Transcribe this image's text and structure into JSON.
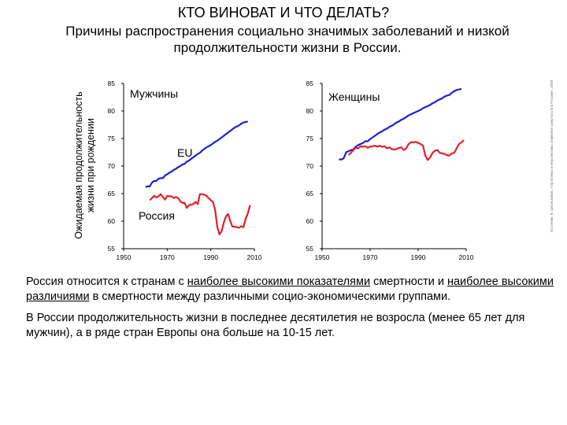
{
  "title": "КТО ВИНОВАТ И ЧТО ДЕЛАТЬ?",
  "subtitle": "Причины распространения социально значимых заболеваний и низкой продолжительности жизни  в России.",
  "y_axis_title": "Ожидаемая продолжительность жизни при рождении",
  "source_note": "Источник: В. Школьников, «Проблемы и перспективы снижения смертности в России», 2009",
  "paragraph1": {
    "p1": "Россия относится к странам с ",
    "u1": "наиболее высокими  показателями",
    "p2": " смертности и ",
    "u2": "наиболее высокими различиями",
    "p3": " в смертности между различными социо-экономическими группами."
  },
  "paragraph2": "В России продолжительность жизни в последнее десятилетия  не возросла (менее 65 лет для мужчин), а в ряде стран Европы она больше на 10-15 лет.",
  "colors": {
    "eu": "#1f1fcf",
    "russia": "#e0202a",
    "axis": "#000000"
  },
  "chart_data": [
    {
      "type": "line",
      "title": "Мужчины",
      "ylim": [
        55,
        85
      ],
      "xlim": [
        1950,
        2010
      ],
      "yticks": [
        55,
        60,
        65,
        70,
        75,
        80,
        85
      ],
      "xticks": [
        1950,
        1970,
        1990,
        2010
      ],
      "series": [
        {
          "name": "EU",
          "color": "#1f1fcf",
          "points": [
            [
              1960,
              66.2
            ],
            [
              1961,
              66.3
            ],
            [
              1962,
              66.3
            ],
            [
              1963,
              67.0
            ],
            [
              1964,
              67.3
            ],
            [
              1965,
              67.3
            ],
            [
              1966,
              67.7
            ],
            [
              1967,
              67.8
            ],
            [
              1968,
              67.8
            ],
            [
              1969,
              68.3
            ],
            [
              1970,
              68.5
            ],
            [
              1971,
              68.8
            ],
            [
              1972,
              69.0
            ],
            [
              1973,
              69.3
            ],
            [
              1974,
              69.5
            ],
            [
              1975,
              69.8
            ],
            [
              1976,
              70.0
            ],
            [
              1977,
              70.3
            ],
            [
              1978,
              70.4
            ],
            [
              1979,
              70.8
            ],
            [
              1980,
              71.0
            ],
            [
              1981,
              71.3
            ],
            [
              1982,
              71.6
            ],
            [
              1983,
              71.9
            ],
            [
              1984,
              72.2
            ],
            [
              1985,
              72.4
            ],
            [
              1986,
              72.8
            ],
            [
              1987,
              73.1
            ],
            [
              1988,
              73.4
            ],
            [
              1989,
              73.6
            ],
            [
              1990,
              73.8
            ],
            [
              1991,
              74.1
            ],
            [
              1992,
              74.4
            ],
            [
              1993,
              74.6
            ],
            [
              1994,
              74.9
            ],
            [
              1995,
              75.2
            ],
            [
              1996,
              75.5
            ],
            [
              1997,
              75.8
            ],
            [
              1998,
              76.1
            ],
            [
              1999,
              76.4
            ],
            [
              2000,
              76.7
            ],
            [
              2001,
              77.0
            ],
            [
              2002,
              77.2
            ],
            [
              2003,
              77.4
            ],
            [
              2004,
              77.7
            ],
            [
              2005,
              77.9
            ],
            [
              2006,
              78.0
            ],
            [
              2007,
              78.1
            ]
          ]
        },
        {
          "name": "Россия",
          "color": "#e0202a",
          "points": [
            [
              1962,
              63.8
            ],
            [
              1963,
              64.2
            ],
            [
              1964,
              64.6
            ],
            [
              1965,
              64.3
            ],
            [
              1966,
              64.5
            ],
            [
              1967,
              64.9
            ],
            [
              1968,
              64.4
            ],
            [
              1969,
              63.9
            ],
            [
              1970,
              64.6
            ],
            [
              1971,
              64.5
            ],
            [
              1972,
              64.5
            ],
            [
              1973,
              64.2
            ],
            [
              1974,
              64.4
            ],
            [
              1975,
              64.2
            ],
            [
              1976,
              63.6
            ],
            [
              1977,
              63.3
            ],
            [
              1978,
              63.3
            ],
            [
              1979,
              62.4
            ],
            [
              1980,
              62.9
            ],
            [
              1981,
              63.0
            ],
            [
              1982,
              63.1
            ],
            [
              1983,
              63.5
            ],
            [
              1984,
              63.1
            ],
            [
              1985,
              64.9
            ],
            [
              1986,
              64.9
            ],
            [
              1987,
              64.8
            ],
            [
              1988,
              64.6
            ],
            [
              1989,
              64.2
            ],
            [
              1990,
              63.8
            ],
            [
              1991,
              63.5
            ],
            [
              1992,
              62.0
            ],
            [
              1993,
              58.9
            ],
            [
              1994,
              57.6
            ],
            [
              1995,
              58.2
            ],
            [
              1996,
              59.8
            ],
            [
              1997,
              60.9
            ],
            [
              1998,
              61.3
            ],
            [
              1999,
              59.9
            ],
            [
              2000,
              59.0
            ],
            [
              2001,
              59.0
            ],
            [
              2002,
              58.9
            ],
            [
              2003,
              58.8
            ],
            [
              2004,
              59.1
            ],
            [
              2005,
              58.9
            ],
            [
              2006,
              60.4
            ],
            [
              2007,
              61.4
            ],
            [
              2008,
              62.9
            ]
          ]
        }
      ]
    },
    {
      "type": "line",
      "title": "Женщины",
      "ylim": [
        55,
        85
      ],
      "xlim": [
        1950,
        2010
      ],
      "yticks": [
        55,
        60,
        65,
        70,
        75,
        80,
        85
      ],
      "xticks": [
        1950,
        1970,
        1990,
        2010
      ],
      "series": [
        {
          "name": "EU",
          "color": "#1f1fcf",
          "points": [
            [
              1957,
              71.2
            ],
            [
              1958,
              71.2
            ],
            [
              1959,
              71.4
            ],
            [
              1960,
              72.5
            ],
            [
              1961,
              72.7
            ],
            [
              1962,
              72.9
            ],
            [
              1963,
              73.0
            ],
            [
              1964,
              73.5
            ],
            [
              1965,
              73.8
            ],
            [
              1966,
              74.0
            ],
            [
              1967,
              74.2
            ],
            [
              1968,
              74.5
            ],
            [
              1969,
              74.5
            ],
            [
              1970,
              74.9
            ],
            [
              1971,
              75.2
            ],
            [
              1972,
              75.5
            ],
            [
              1973,
              75.8
            ],
            [
              1974,
              76.1
            ],
            [
              1975,
              76.3
            ],
            [
              1976,
              76.6
            ],
            [
              1977,
              76.8
            ],
            [
              1978,
              77.1
            ],
            [
              1979,
              77.3
            ],
            [
              1980,
              77.6
            ],
            [
              1981,
              77.9
            ],
            [
              1982,
              78.1
            ],
            [
              1983,
              78.4
            ],
            [
              1984,
              78.6
            ],
            [
              1985,
              78.9
            ],
            [
              1986,
              79.2
            ],
            [
              1987,
              79.4
            ],
            [
              1988,
              79.6
            ],
            [
              1989,
              79.8
            ],
            [
              1990,
              80.0
            ],
            [
              1991,
              80.2
            ],
            [
              1992,
              80.5
            ],
            [
              1993,
              80.7
            ],
            [
              1994,
              80.9
            ],
            [
              1995,
              81.1
            ],
            [
              1996,
              81.4
            ],
            [
              1997,
              81.6
            ],
            [
              1998,
              81.9
            ],
            [
              1999,
              82.1
            ],
            [
              2000,
              82.3
            ],
            [
              2001,
              82.6
            ],
            [
              2002,
              82.8
            ],
            [
              2003,
              82.9
            ],
            [
              2004,
              83.3
            ],
            [
              2005,
              83.6
            ],
            [
              2006,
              83.8
            ],
            [
              2007,
              83.9
            ],
            [
              2008,
              84.0
            ]
          ]
        },
        {
          "name": "Россия",
          "color": "#e0202a",
          "points": [
            [
              1961,
              72.0
            ],
            [
              1962,
              72.4
            ],
            [
              1963,
              72.9
            ],
            [
              1964,
              73.3
            ],
            [
              1965,
              73.2
            ],
            [
              1966,
              73.6
            ],
            [
              1967,
              73.5
            ],
            [
              1968,
              73.6
            ],
            [
              1969,
              73.3
            ],
            [
              1970,
              73.5
            ],
            [
              1971,
              73.6
            ],
            [
              1972,
              73.7
            ],
            [
              1973,
              73.5
            ],
            [
              1974,
              73.7
            ],
            [
              1975,
              73.5
            ],
            [
              1976,
              73.6
            ],
            [
              1977,
              73.2
            ],
            [
              1978,
              73.4
            ],
            [
              1979,
              73.1
            ],
            [
              1980,
              73.0
            ],
            [
              1981,
              73.1
            ],
            [
              1982,
              73.3
            ],
            [
              1983,
              73.4
            ],
            [
              1984,
              72.9
            ],
            [
              1985,
              73.2
            ],
            [
              1986,
              74.0
            ],
            [
              1987,
              74.3
            ],
            [
              1988,
              74.3
            ],
            [
              1989,
              74.4
            ],
            [
              1990,
              74.2
            ],
            [
              1991,
              74.0
            ],
            [
              1992,
              73.7
            ],
            [
              1993,
              71.9
            ],
            [
              1994,
              71.1
            ],
            [
              1995,
              71.6
            ],
            [
              1996,
              72.4
            ],
            [
              1997,
              72.8
            ],
            [
              1998,
              72.9
            ],
            [
              1999,
              72.4
            ],
            [
              2000,
              72.3
            ],
            [
              2001,
              72.2
            ],
            [
              2002,
              72.0
            ],
            [
              2003,
              71.9
            ],
            [
              2004,
              72.3
            ],
            [
              2005,
              72.4
            ],
            [
              2006,
              73.2
            ],
            [
              2007,
              74.0
            ],
            [
              2008,
              74.3
            ],
            [
              2009,
              74.7
            ]
          ]
        }
      ]
    }
  ]
}
